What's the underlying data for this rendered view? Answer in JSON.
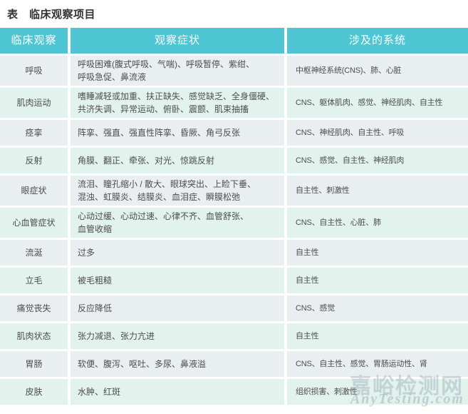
{
  "title": "表　临床观察项目",
  "table": {
    "headers": [
      "临床观察",
      "观察症状",
      "涉及的系统"
    ],
    "rows": [
      {
        "observation": "呼吸",
        "symptoms": "呼吸困难(腹式呼吸、气喘)、呼吸暂停、紫绀、\n呼吸急促、鼻流液",
        "systems": "中枢神经系统(CNS)、肺、心脏"
      },
      {
        "observation": "肌肉运动",
        "symptoms": "嗜睡减轻或加重、扶正缺失、感觉缺乏、全身僵硬、\n共济失调、异常运动、俯卧、震颤、肌束抽搐",
        "systems": "CNS、躯体肌肉、感觉、神经肌肉、自主性"
      },
      {
        "observation": "痉挛",
        "symptoms": "阵挛、强直、强直性阵挛、昏厥、角弓反张",
        "systems": "CNS、神经肌肉、自主性、呼吸"
      },
      {
        "observation": "反射",
        "symptoms": "角膜、翻正、牵张、对光、惊跳反射",
        "systems": "CNS、感觉、自主性、神经肌肉"
      },
      {
        "observation": "眼症状",
        "symptoms": "流泪、瞳孔缩小 / 散大、眼球突出、上睑下垂、\n混浊、虹膜炎、结膜炎、血泪症、瞬膜松弛",
        "systems": "自主性、刺激性"
      },
      {
        "observation": "心血管症状",
        "symptoms": "心动过缓、心动过速、心律不齐、血管舒张、\n血管收缩",
        "systems": "CNS、自主性、心脏、肺"
      },
      {
        "observation": "流涎",
        "symptoms": "过多",
        "systems": "自主性"
      },
      {
        "observation": "立毛",
        "symptoms": "被毛粗糙",
        "systems": "自主性"
      },
      {
        "observation": "痛觉丧失",
        "symptoms": "反应降低",
        "systems": "CNS、感觉"
      },
      {
        "observation": "肌肉状态",
        "symptoms": "张力减退、张力亢进",
        "systems": "自主性"
      },
      {
        "observation": "胃肠",
        "symptoms": "软便、腹泻、呕吐、多尿、鼻液溢",
        "systems": "CNS、自主性、感觉、胃肠运动性、肾"
      },
      {
        "observation": "皮肤",
        "symptoms": "水肿、红斑",
        "systems": "组织损害、刺激性"
      }
    ]
  },
  "watermark": {
    "site_name": "嘉峪检测网",
    "site_url": "AnyTesting.com"
  },
  "colors": {
    "header_bg": "#4ec5d3",
    "header_text": "#ffffff",
    "row_odd_bg": "#e9eef1",
    "row_even_bg": "#e2f3ee",
    "row_first_bg": "#dbedf3",
    "body_text": "#4d4d4d",
    "title_text": "#333333",
    "watermark_text": "#9bacb8"
  }
}
